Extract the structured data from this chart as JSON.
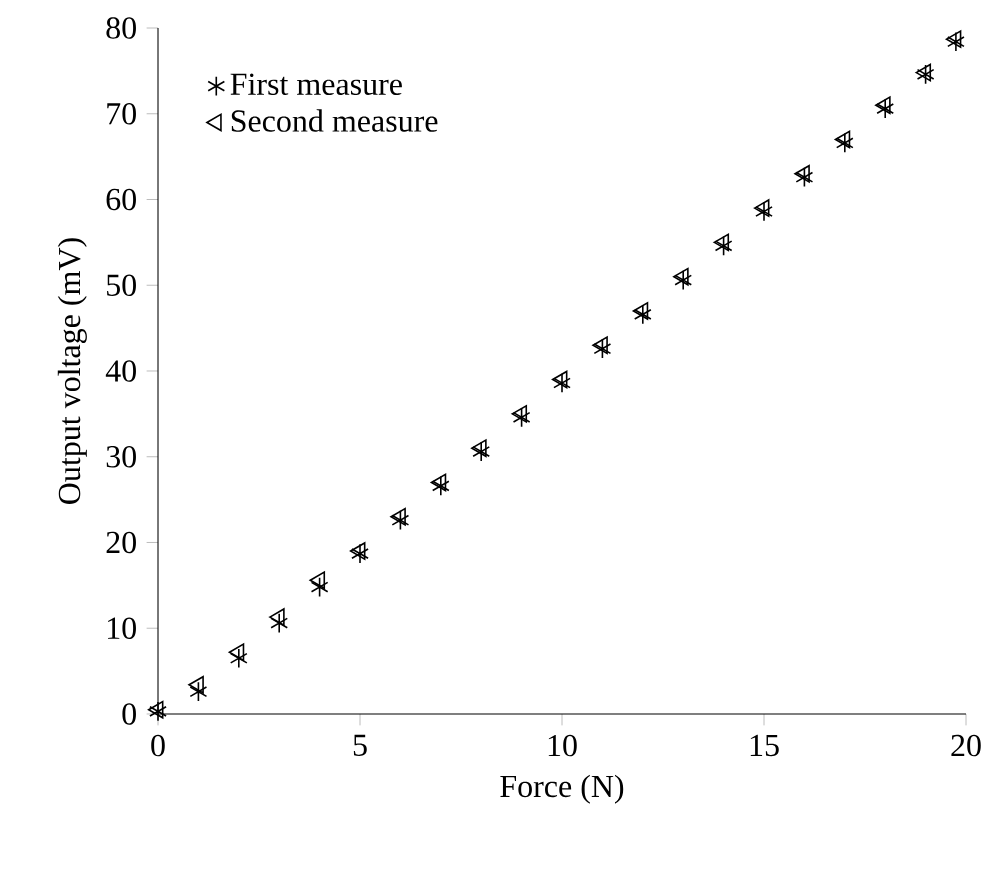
{
  "chart_data": {
    "type": "scatter",
    "xlabel": "Force (N)",
    "ylabel": "Output voltage (mV)",
    "xlim": [
      0,
      20
    ],
    "xticks": [
      0,
      5,
      10,
      15,
      20
    ],
    "ylim": [
      0,
      80
    ],
    "yticks": [
      0,
      10,
      20,
      30,
      40,
      50,
      60,
      70,
      80
    ],
    "grid": false,
    "legend": "top left",
    "x": [
      0,
      1,
      2,
      3,
      4,
      5,
      6,
      7,
      8,
      9,
      10,
      11,
      12,
      13,
      14,
      15,
      16,
      17,
      18,
      19,
      19.75
    ],
    "series": [
      {
        "name": "First measure",
        "color": "#000000",
        "marker": "cross",
        "values": [
          0.3,
          2.6,
          6.5,
          10.6,
          14.8,
          18.7,
          22.6,
          26.6,
          30.6,
          34.6,
          38.6,
          42.6,
          46.6,
          50.6,
          54.6,
          58.6,
          62.6,
          66.6,
          70.6,
          74.6,
          78.4
        ]
      },
      {
        "name": "Second measure",
        "color": "#000000",
        "marker": "triangle",
        "values": [
          0.5,
          3.4,
          7.2,
          11.3,
          15.6,
          19,
          23,
          27,
          31,
          35,
          39,
          43,
          47,
          51,
          55,
          59,
          63,
          67,
          71,
          74.8,
          78.7
        ]
      }
    ]
  }
}
